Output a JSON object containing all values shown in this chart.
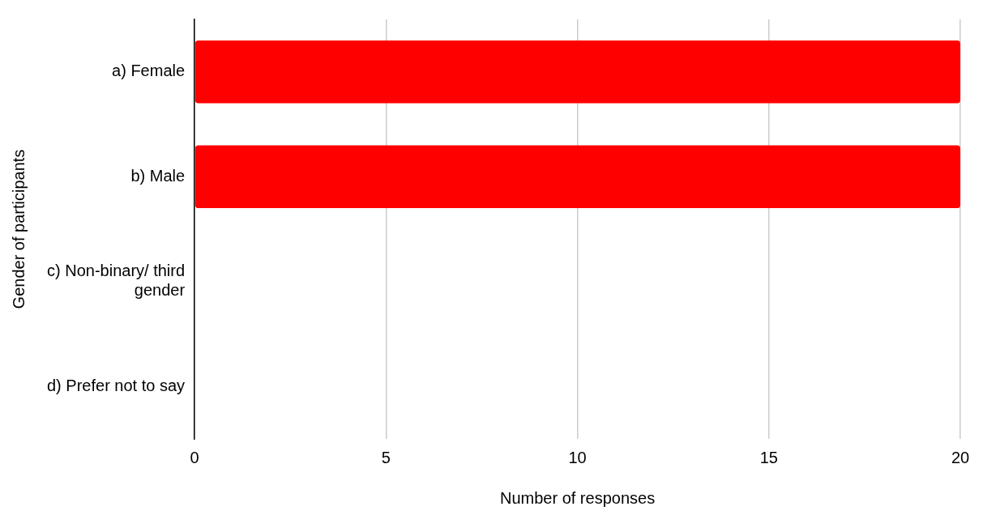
{
  "chart_data": {
    "type": "bar",
    "orientation": "horizontal",
    "xlabel": "Number of responses",
    "ylabel": "Gender of participants",
    "categories": [
      "a) Female",
      "b) Male",
      "c) Non-binary/ third gender",
      "d) Prefer not to say"
    ],
    "values": [
      20,
      20,
      0,
      0
    ],
    "color": "#ff0000",
    "xlim": [
      0,
      20
    ],
    "xticks": [
      0,
      5,
      10,
      15,
      20
    ],
    "grid": "x",
    "legend": false
  }
}
